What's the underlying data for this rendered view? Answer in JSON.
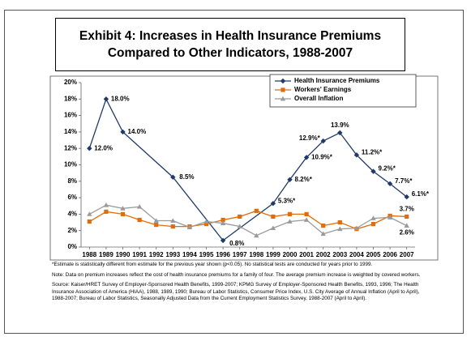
{
  "chart_data": {
    "type": "line",
    "title": "Exhibit 4: Increases in Health Insurance Premiums Compared to Other Indicators, 1988-2007",
    "xlim": [
      1987.5,
      2007.5
    ],
    "xticks": [
      1988,
      1989,
      1990,
      1991,
      1992,
      1993,
      1994,
      1995,
      1996,
      1997,
      1998,
      1999,
      2000,
      2001,
      2002,
      2003,
      2004,
      2005,
      2006,
      2007
    ],
    "ylim": [
      0,
      20
    ],
    "yticks": [
      {
        "value": 0,
        "label": "0%"
      },
      {
        "value": 2,
        "label": "2%"
      },
      {
        "value": 4,
        "label": "4%"
      },
      {
        "value": 6,
        "label": "6%"
      },
      {
        "value": 8,
        "label": "8%"
      },
      {
        "value": 10,
        "label": "10%"
      },
      {
        "value": 12,
        "label": "12%"
      },
      {
        "value": 14,
        "label": "14%"
      },
      {
        "value": 16,
        "label": "16%"
      },
      {
        "value": 18,
        "label": "18%"
      },
      {
        "value": 20,
        "label": "20%"
      }
    ],
    "legend": "upper right",
    "series": [
      {
        "name": "Health Insurance Premiums",
        "color": "#1f3a68",
        "marker": "diamond",
        "x": [
          1988,
          1989,
          1990,
          1993,
          1996,
          1999,
          2000,
          2001,
          2002,
          2003,
          2004,
          2005,
          2006,
          2007
        ],
        "values": [
          12.0,
          18.0,
          14.0,
          8.5,
          0.8,
          5.3,
          8.2,
          10.9,
          12.9,
          13.9,
          11.2,
          9.2,
          7.7,
          6.1
        ],
        "value_labels": [
          "12.0%",
          "18.0%",
          "14.0%",
          "8.5%",
          "0.8%",
          "5.3%*",
          "8.2%*",
          "10.9%*",
          "12.9%*",
          "13.9%",
          "11.2%*",
          "9.2%*",
          "7.7%*",
          "6.1%*"
        ]
      },
      {
        "name": "Workers' Earnings",
        "color": "#e36c0a",
        "marker": "square",
        "x": [
          1988,
          1989,
          1990,
          1991,
          1992,
          1993,
          1994,
          1995,
          1996,
          1997,
          1998,
          1999,
          2000,
          2001,
          2002,
          2003,
          2004,
          2005,
          2006,
          2007
        ],
        "values": [
          3.1,
          4.3,
          4.0,
          3.3,
          2.7,
          2.5,
          2.5,
          2.8,
          3.3,
          3.7,
          4.4,
          3.7,
          4.0,
          4.0,
          2.6,
          3.0,
          2.2,
          2.8,
          3.8,
          3.7
        ],
        "value_labels": [
          null,
          null,
          null,
          null,
          null,
          null,
          null,
          null,
          null,
          null,
          null,
          null,
          null,
          null,
          null,
          null,
          null,
          null,
          null,
          "3.7%"
        ]
      },
      {
        "name": "Overall Inflation",
        "color": "#9a9a9a",
        "marker": "triangle",
        "x": [
          1988,
          1989,
          1990,
          1991,
          1992,
          1993,
          1994,
          1995,
          1996,
          1997,
          1998,
          1999,
          2000,
          2001,
          2002,
          2003,
          2004,
          2005,
          2006,
          2007
        ],
        "values": [
          4.0,
          5.1,
          4.7,
          4.9,
          3.2,
          3.2,
          2.4,
          3.1,
          2.9,
          2.5,
          1.4,
          2.3,
          3.1,
          3.3,
          1.6,
          2.2,
          2.3,
          3.5,
          3.6,
          2.6
        ],
        "value_labels": [
          null,
          null,
          null,
          null,
          null,
          null,
          null,
          null,
          null,
          null,
          null,
          null,
          null,
          null,
          null,
          null,
          null,
          null,
          null,
          "2.6%"
        ]
      }
    ]
  },
  "notes": [
    "*Estimate is statistically different from estimate for the previous year shown (p<0.05).  No statistical tests are conducted for years prior to 1999.",
    "Note:  Data on premium increases reflect the cost of health insurance premiums for a family of four. The average premium increase is weighted by covered workers.",
    "Source:  Kaiser/HRET Survey of Employer-Sponsored Health Benefits, 1999-2007; KPMG Survey of Employer-Sponsored Health Benefits, 1993, 1996; The Health Insurance Association of America (HIAA), 1988, 1989, 1990; Bureau of Labor Statistics, Consumer Price Index, U.S. City Average of Annual Inflation (April to April), 1988-2007; Bureau of Labor Statistics, Seasonally Adjusted Data from the Current Employment Statistics Survey, 1988-2007 (April to April)."
  ]
}
